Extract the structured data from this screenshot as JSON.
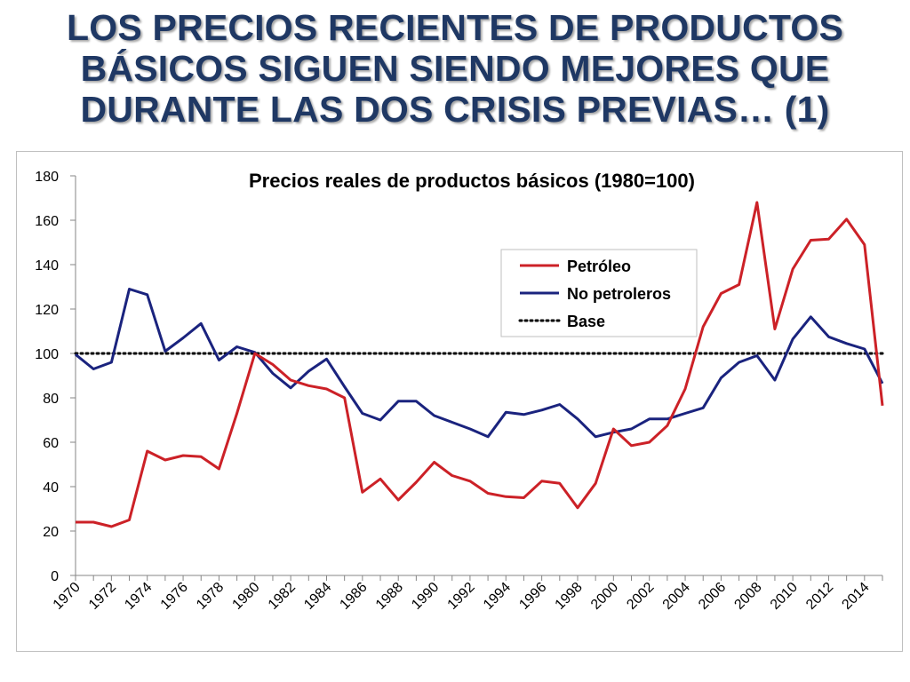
{
  "slide": {
    "title_lines": [
      "LOS PRECIOS RECIENTES DE PRODUCTOS",
      "BÁSICOS SIGUEN SIENDO MEJORES QUE",
      "DURANTE LAS DOS CRISIS PREVIAS… (1)"
    ]
  },
  "chart_data": {
    "type": "line",
    "title": "Precios reales de productos básicos (1980=100)",
    "xlabel": "",
    "ylabel": "",
    "ylim": [
      0,
      180
    ],
    "yticks": [
      0,
      20,
      40,
      60,
      80,
      100,
      120,
      140,
      160,
      180
    ],
    "x": [
      1970,
      1971,
      1972,
      1973,
      1974,
      1975,
      1976,
      1977,
      1978,
      1979,
      1980,
      1981,
      1982,
      1983,
      1984,
      1985,
      1986,
      1987,
      1988,
      1989,
      1990,
      1991,
      1992,
      1993,
      1994,
      1995,
      1996,
      1997,
      1998,
      1999,
      2000,
      2001,
      2002,
      2003,
      2004,
      2005,
      2006,
      2007,
      2008,
      2009,
      2010,
      2011,
      2012,
      2013,
      2014,
      2015
    ],
    "xtick_labels": [
      "1970",
      "1972",
      "1974",
      "1976",
      "1978",
      "1980",
      "1982",
      "1984",
      "1986",
      "1988",
      "1990",
      "1992",
      "1994",
      "1996",
      "1998",
      "2000",
      "2002",
      "2004",
      "2006",
      "2008",
      "2010",
      "2012",
      "2014"
    ],
    "grid": false,
    "legend_position": "upper-right",
    "series": [
      {
        "name": "Petróleo",
        "color": "#cc2127",
        "style": "solid",
        "values": [
          24,
          24,
          22,
          25,
          56,
          52,
          54,
          53.5,
          48,
          73,
          100,
          95,
          88,
          85.5,
          84,
          80,
          37.5,
          43.5,
          34,
          42,
          51,
          45,
          42.5,
          37,
          35.5,
          35,
          42.5,
          41.5,
          30.5,
          41.5,
          66,
          58.5,
          60,
          67.5,
          84,
          112,
          127,
          131,
          168,
          111,
          138,
          151,
          151.5,
          160.5,
          149,
          76.5
        ]
      },
      {
        "name": "No petroleros",
        "color": "#1a237e",
        "style": "solid",
        "values": [
          99.5,
          93,
          96,
          129,
          126.5,
          101,
          107,
          113.5,
          97,
          103,
          100.5,
          91,
          84.5,
          92,
          97.5,
          85,
          73,
          70,
          78.5,
          78.5,
          72,
          69,
          66,
          62.5,
          73.5,
          72.5,
          74.5,
          77,
          70.5,
          62.5,
          64.5,
          66,
          70.5,
          70.5,
          73,
          75.5,
          89,
          96,
          99,
          88,
          106.5,
          116.5,
          107.5,
          104.5,
          102,
          86.5
        ]
      },
      {
        "name": "Base",
        "color": "#000000",
        "style": "dotted",
        "values": [
          100,
          100,
          100,
          100,
          100,
          100,
          100,
          100,
          100,
          100,
          100,
          100,
          100,
          100,
          100,
          100,
          100,
          100,
          100,
          100,
          100,
          100,
          100,
          100,
          100,
          100,
          100,
          100,
          100,
          100,
          100,
          100,
          100,
          100,
          100,
          100,
          100,
          100,
          100,
          100,
          100,
          100,
          100,
          100,
          100,
          100
        ]
      }
    ]
  }
}
